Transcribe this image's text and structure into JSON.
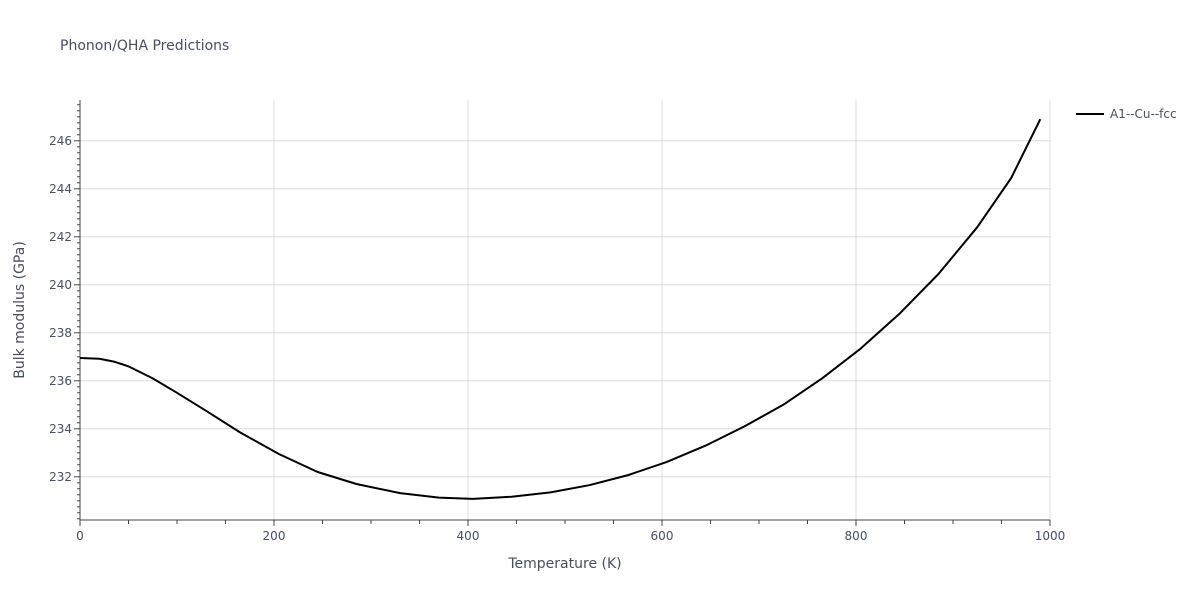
{
  "chart_data": {
    "type": "line",
    "title": "Phonon/QHA Predictions",
    "xlabel": "Temperature (K)",
    "ylabel": "Bulk modulus (GPa)",
    "xlim": [
      0,
      1000
    ],
    "ylim": [
      230.2,
      247.7
    ],
    "xticks": [
      0,
      200,
      400,
      600,
      800,
      1000
    ],
    "yticks": [
      232,
      234,
      236,
      238,
      240,
      242,
      244,
      246
    ],
    "grid": true,
    "legend_position": "top-right",
    "series": [
      {
        "name": "A1--Cu--fcc",
        "color": "#000000",
        "x": [
          0,
          20,
          35,
          50,
          75,
          100,
          130,
          165,
          205,
          245,
          285,
          330,
          370,
          405,
          445,
          485,
          525,
          565,
          605,
          645,
          685,
          725,
          765,
          805,
          845,
          885,
          925,
          960,
          990
        ],
        "y": [
          236.95,
          236.92,
          236.8,
          236.6,
          236.1,
          235.5,
          234.75,
          233.85,
          232.95,
          232.2,
          231.7,
          231.32,
          231.13,
          231.08,
          231.17,
          231.35,
          231.65,
          232.07,
          232.62,
          233.3,
          234.1,
          235.0,
          236.1,
          237.35,
          238.8,
          240.45,
          242.4,
          244.45,
          246.9
        ]
      }
    ]
  }
}
